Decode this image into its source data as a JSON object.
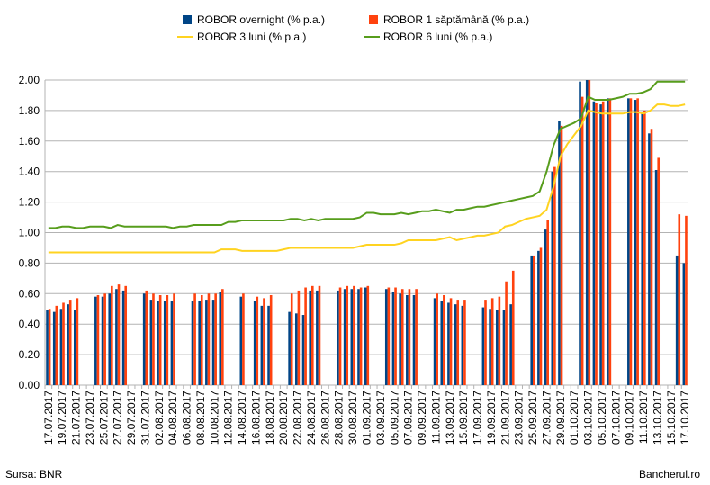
{
  "chart_data": {
    "type": "bar",
    "source": "Sursa: BNR",
    "credit": "Bancherul.ro",
    "categories": [
      "17.07.2017",
      null,
      "19.07.2017",
      null,
      "21.07.2017",
      null,
      "23.07.2017",
      null,
      "25.07.2017",
      null,
      "27.07.2017",
      null,
      "29.07.2017",
      null,
      "31.07.2017",
      null,
      "02.08.2017",
      null,
      "04.08.2017",
      null,
      "06.08.2017",
      null,
      "08.08.2017",
      null,
      "10.08.2017",
      null,
      "12.08.2017",
      null,
      "14.08.2017",
      null,
      "16.08.2017",
      null,
      "18.08.2017",
      null,
      "20.08.2017",
      null,
      "22.08.2017",
      null,
      "24.08.2017",
      null,
      "26.08.2017",
      null,
      "28.08.2017",
      null,
      "30.08.2017",
      null,
      "01.09.2017",
      null,
      "03.09.2017",
      null,
      "05.09.2017",
      null,
      "07.09.2017",
      null,
      "09.09.2017",
      null,
      "11.09.2017",
      null,
      "13.09.2017",
      null,
      "15.09.2017",
      null,
      "17.09.2017",
      null,
      "19.09.2017",
      null,
      "21.09.2017",
      null,
      "23.09.2017",
      null,
      "25.09.2017",
      null,
      "27.09.2017",
      null,
      "29.09.2017",
      null,
      "01.10.2017",
      null,
      "03.10.2017",
      null,
      "05.10.2017",
      null,
      "07.10.2017",
      null,
      "09.10.2017",
      null,
      "11.10.2017",
      null,
      "13.10.2017",
      null,
      "15.10.2017",
      null,
      "17.10.2017"
    ],
    "series": [
      {
        "name": "ROBOR overnight (% p.a.)",
        "type": "bar",
        "color": "#004586",
        "values": [
          0.49,
          0.48,
          0.5,
          0.53,
          0.49,
          null,
          null,
          0.58,
          0.58,
          0.6,
          0.63,
          0.62,
          null,
          null,
          0.6,
          0.56,
          0.55,
          0.55,
          0.55,
          null,
          null,
          0.55,
          0.55,
          0.56,
          0.56,
          0.61,
          null,
          null,
          0.58,
          null,
          0.55,
          0.52,
          0.52,
          null,
          null,
          0.48,
          0.47,
          0.46,
          0.62,
          0.62,
          null,
          null,
          0.62,
          0.63,
          0.63,
          0.63,
          0.64,
          null,
          null,
          0.63,
          0.61,
          0.6,
          0.59,
          0.59,
          null,
          null,
          0.57,
          0.55,
          0.54,
          0.53,
          0.52,
          null,
          null,
          0.51,
          0.5,
          0.49,
          0.49,
          0.53,
          null,
          null,
          0.85,
          0.88,
          1.02,
          1.4,
          1.73,
          null,
          null,
          1.99,
          2.0,
          1.86,
          1.84,
          1.88,
          null,
          null,
          1.88,
          1.87,
          1.78,
          1.65,
          1.41,
          null,
          null,
          0.85,
          0.8
        ]
      },
      {
        "name": "ROBOR 1 săptămână (% p.a.)",
        "type": "bar",
        "color": "#ff420e",
        "values": [
          0.5,
          0.52,
          0.54,
          0.56,
          0.57,
          null,
          null,
          0.59,
          0.6,
          0.65,
          0.66,
          0.65,
          null,
          null,
          0.62,
          0.6,
          0.59,
          0.59,
          0.6,
          null,
          null,
          0.6,
          0.59,
          0.6,
          0.6,
          0.63,
          null,
          null,
          0.6,
          null,
          0.58,
          0.57,
          0.59,
          null,
          null,
          0.6,
          0.62,
          0.64,
          0.65,
          0.65,
          null,
          null,
          0.64,
          0.65,
          0.65,
          0.64,
          0.65,
          null,
          null,
          0.64,
          0.64,
          0.63,
          0.63,
          0.63,
          null,
          null,
          0.6,
          0.59,
          0.57,
          0.56,
          0.56,
          null,
          null,
          0.56,
          0.57,
          0.58,
          0.68,
          0.75,
          null,
          null,
          0.85,
          0.9,
          1.08,
          1.43,
          1.7,
          null,
          null,
          1.89,
          2.0,
          1.85,
          1.86,
          1.88,
          null,
          null,
          1.88,
          1.88,
          1.8,
          1.68,
          1.49,
          null,
          null,
          1.12,
          1.11
        ]
      },
      {
        "name": "ROBOR 3 luni (% p.a.)",
        "type": "line",
        "color": "#ffd320",
        "values": [
          0.87,
          0.87,
          0.87,
          0.87,
          0.87,
          0.87,
          0.87,
          0.87,
          0.87,
          0.87,
          0.87,
          0.87,
          0.87,
          0.87,
          0.87,
          0.87,
          0.87,
          0.87,
          0.87,
          0.87,
          0.87,
          0.87,
          0.87,
          0.87,
          0.87,
          0.89,
          0.89,
          0.89,
          0.88,
          0.88,
          0.88,
          0.88,
          0.88,
          0.88,
          0.89,
          0.9,
          0.9,
          0.9,
          0.9,
          0.9,
          0.9,
          0.9,
          0.9,
          0.9,
          0.9,
          0.91,
          0.92,
          0.92,
          0.92,
          0.92,
          0.92,
          0.93,
          0.95,
          0.95,
          0.95,
          0.95,
          0.95,
          0.96,
          0.97,
          0.95,
          0.96,
          0.97,
          0.98,
          0.98,
          0.99,
          1.0,
          1.04,
          1.05,
          1.07,
          1.09,
          1.1,
          1.11,
          1.15,
          1.3,
          1.5,
          1.58,
          1.64,
          1.7,
          1.8,
          1.79,
          1.78,
          1.78,
          1.78,
          1.78,
          1.79,
          1.79,
          1.78,
          1.8,
          1.84,
          1.84,
          1.83,
          1.83,
          1.84
        ]
      },
      {
        "name": "ROBOR 6 luni (% p.a.)",
        "type": "line",
        "color": "#579d1c",
        "values": [
          1.03,
          1.03,
          1.04,
          1.04,
          1.03,
          1.03,
          1.04,
          1.04,
          1.04,
          1.03,
          1.05,
          1.04,
          1.04,
          1.04,
          1.04,
          1.04,
          1.04,
          1.04,
          1.03,
          1.04,
          1.04,
          1.05,
          1.05,
          1.05,
          1.05,
          1.05,
          1.07,
          1.07,
          1.08,
          1.08,
          1.08,
          1.08,
          1.08,
          1.08,
          1.08,
          1.09,
          1.09,
          1.08,
          1.09,
          1.08,
          1.09,
          1.09,
          1.09,
          1.09,
          1.09,
          1.1,
          1.13,
          1.13,
          1.12,
          1.12,
          1.12,
          1.13,
          1.12,
          1.13,
          1.14,
          1.14,
          1.15,
          1.14,
          1.13,
          1.15,
          1.15,
          1.16,
          1.17,
          1.17,
          1.18,
          1.19,
          1.2,
          1.21,
          1.22,
          1.23,
          1.24,
          1.27,
          1.4,
          1.57,
          1.68,
          1.7,
          1.72,
          1.75,
          1.89,
          1.87,
          1.87,
          1.87,
          1.88,
          1.89,
          1.91,
          1.91,
          1.92,
          1.94,
          1.99,
          1.99,
          1.99,
          1.99,
          1.99
        ]
      }
    ],
    "ylim": [
      0,
      2
    ],
    "yticks": [
      {
        "value": 0,
        "label": "0.00"
      },
      {
        "value": 0.2,
        "label": "0.20"
      },
      {
        "value": 0.4,
        "label": "0.40"
      },
      {
        "value": 0.6,
        "label": "0.60"
      },
      {
        "value": 0.8,
        "label": "0.80"
      },
      {
        "value": 1,
        "label": "1.00"
      },
      {
        "value": 1.2,
        "label": "1.20"
      },
      {
        "value": 1.4,
        "label": "1.40"
      },
      {
        "value": 1.6,
        "label": "1.60"
      },
      {
        "value": 1.8,
        "label": "1.80"
      },
      {
        "value": 2,
        "label": "2.00"
      }
    ],
    "grid": true
  }
}
